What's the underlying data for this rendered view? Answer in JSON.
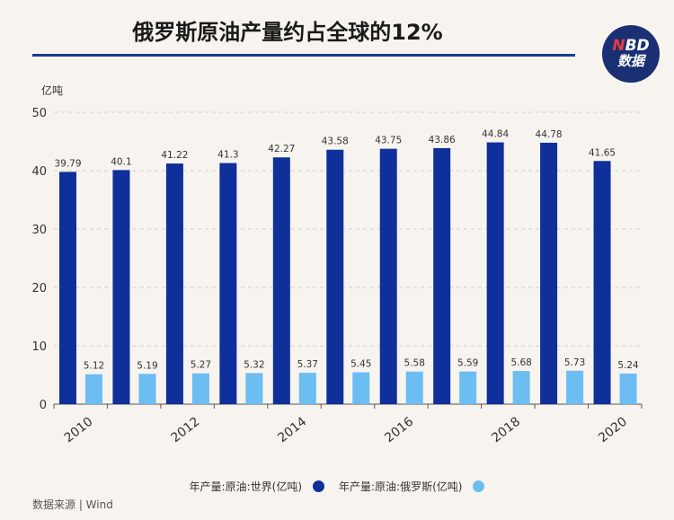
{
  "header": {
    "title": "俄罗斯原油产量约占全球的12%",
    "logo_line1_a": "N",
    "logo_line1_b": "BD",
    "logo_line2": "数据"
  },
  "footer": {
    "source": "数据来源 | Wind"
  },
  "colors": {
    "world": "#0f2f9a",
    "russia": "#6cbdf2",
    "grid": "#cfcfcf"
  },
  "chart_data": {
    "type": "bar",
    "unit_label": "亿吨",
    "categories": [
      "2010",
      "2011",
      "2012",
      "2013",
      "2014",
      "2015",
      "2016",
      "2017",
      "2018",
      "2019",
      "2020"
    ],
    "x_tick_labels": [
      "2010",
      "",
      "2012",
      "",
      "2014",
      "",
      "2016",
      "",
      "2018",
      "",
      "2020"
    ],
    "series": [
      {
        "name": "年产量:原油:世界(亿吨)",
        "values": [
          39.79,
          40.1,
          41.22,
          41.3,
          42.27,
          43.58,
          43.75,
          43.86,
          44.84,
          44.78,
          41.65
        ]
      },
      {
        "name": "年产量:原油:俄罗斯(亿吨)",
        "values": [
          5.12,
          5.19,
          5.27,
          5.32,
          5.37,
          5.45,
          5.58,
          5.59,
          5.68,
          5.73,
          5.24
        ]
      }
    ],
    "ylim": [
      0,
      50
    ],
    "yticks": [
      0,
      10,
      20,
      30,
      40,
      50
    ],
    "grid": true,
    "legend_position": "bottom"
  }
}
